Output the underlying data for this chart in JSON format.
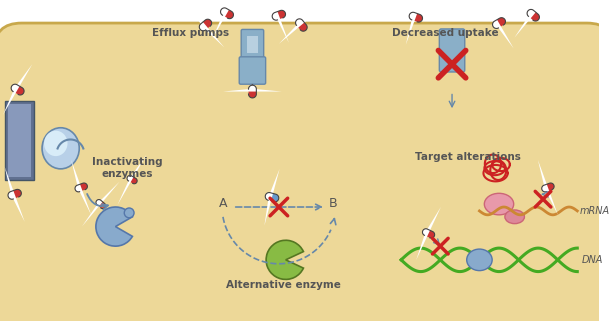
{
  "fig_width": 6.12,
  "fig_height": 3.24,
  "dpi": 100,
  "bg_color": "#FFFFFF",
  "cell_fill": "#EDD898",
  "cell_edge": "#C8A84B",
  "cell_shadow": "#D4B870",
  "efflux_label": "Efflux pumps",
  "decreased_label": "Decreased uptake",
  "inactivating_label": "Inactivating\nenzymes",
  "alternative_label": "Alternative enzyme",
  "target_label": "Target alterations",
  "mrna_label": "mRNA",
  "dna_label": "DNA",
  "dark_gray": "#555555",
  "pump_blue": "#8AAFC8",
  "pump_dark": "#6688AA",
  "pump_inner": "#B8D0E0",
  "trans_dark": "#607090",
  "trans_light": "#8899BB",
  "enzyme_blue": "#88AACC",
  "enzyme_dark": "#5577AA",
  "green_enzyme": "#88BB44",
  "green_dark": "#557722",
  "pink1": "#E899AA",
  "pink2": "#DD8899",
  "pink_edge": "#CC6677",
  "red": "#CC2222",
  "blue_arrow": "#6688AA",
  "dna_green": "#44AA22",
  "mrna_orange": "#CC8833",
  "pill_red": "#CC3333",
  "pill_white": "#FFFFFF",
  "pill_dark": "#BB2222"
}
